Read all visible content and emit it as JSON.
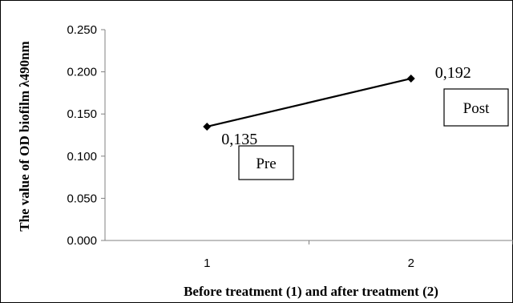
{
  "chart_data": {
    "type": "line",
    "title": "",
    "xlabel": "Before treatment (1) and after treatment (2)",
    "ylabel": "The value of OD biofilm λ490nm",
    "categories": [
      "1",
      "2"
    ],
    "ylim": [
      0,
      0.25
    ],
    "yticks": [
      "0.000",
      "0.050",
      "0.100",
      "0.150",
      "0.200",
      "0.250"
    ],
    "series": [
      {
        "values": [
          0.135,
          0.192
        ],
        "color": "#000000",
        "marker": "diamond"
      }
    ],
    "data_labels": [
      "0,135",
      "0,192"
    ],
    "annotations": [
      "Pre",
      "Post"
    ],
    "grid": false,
    "legend": "none"
  }
}
